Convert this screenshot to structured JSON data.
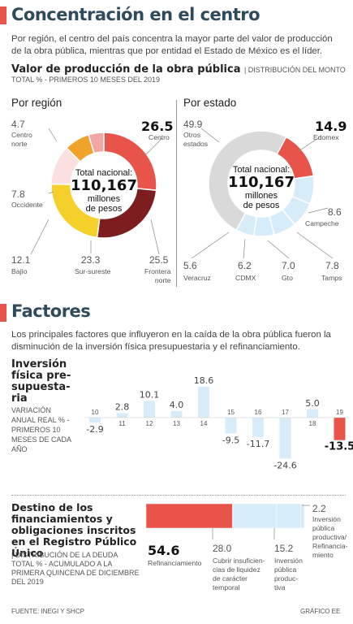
{
  "colors": {
    "accent": "#e8534a",
    "navy": "#2f4a5b",
    "light_blue": "#d6ecf8",
    "dark_red": "#7d1d1f",
    "yellow": "#f5d02a",
    "orange": "#f0a22a",
    "pink": "#f2a7a5",
    "pale_pink": "#fbe0df",
    "gray": "#d9d9d9"
  },
  "section1": {
    "title": "Concentración en el centro",
    "lead": "Por región, el centro del país concentra la mayor parte del valor de producción de la obra pública, mientras que por entidad el Estado de México es el líder.",
    "heading_bold": "Valor de producción de la obra pública",
    "heading_small": "| DISTRIBUCIÓN DEL MONTO",
    "heading_small2": "TOTAL % - PRIMEROS 10 MESES DEL 2019",
    "left_title": "Por región",
    "right_title": "Por estado",
    "center": {
      "line1": "Total nacional:",
      "line2": "110,167",
      "line3": "millones",
      "line4": "de pesos"
    },
    "region_labels": [
      {
        "value": "4.7",
        "label": "Centro\nnorte"
      },
      {
        "value": "26.5",
        "label": "Centro"
      },
      {
        "value": "7.8",
        "label": "Occidente"
      },
      {
        "value": "12.1",
        "label": "Bajío"
      },
      {
        "value": "23.3",
        "label": "Sur-sureste"
      },
      {
        "value": "25.5",
        "label": "Frontera\nnorte"
      }
    ],
    "state_labels": [
      {
        "value": "49.9",
        "label": "Otros\nestados"
      },
      {
        "value": "14.9",
        "label": "Edomex"
      },
      {
        "value": "8.6",
        "label": "Campeche"
      },
      {
        "value": "5.6",
        "label": "Veracruz"
      },
      {
        "value": "6.2",
        "label": "CDMX"
      },
      {
        "value": "7.0",
        "label": "Gto"
      },
      {
        "value": "7.8",
        "label": "Tamps"
      }
    ]
  },
  "section2": {
    "title": "Factores",
    "lead": "Los principales factores que influyeron en la caída de la obra pública fueron la disminución de la inversión física presupuestaria y el refinanciamiento.",
    "inv_title": "Inversión física pre-supuesta-ria",
    "inv_sub": "VARIACIÓN ANUAL REAL % - PRIMEROS 10 MESES DE CADA AÑO",
    "dest_title": "Destino de los financiamientos y obligaciones inscritos en el Registro Público Único",
    "dest_sub": "| DISTRIBUCIÓN DE LA DEUDA TOTAL % - ACUMULADO A LA PRIMERA QUINCENA DE DICIEMBRE DEL 2019",
    "dest_labels": [
      {
        "value": "54.6",
        "label": "Refinanciamiento"
      },
      {
        "value": "28.0",
        "label": "Cubrir insuficien-\ncias de liquidez\nde carácter\ntemporal"
      },
      {
        "value": "15.2",
        "label": "Inversión\npública\nproduc-\ntiva"
      },
      {
        "value": "2.2",
        "label": "Inversión\npública\nproductiva/\nRefinancia-\nmiento"
      }
    ]
  },
  "footer": {
    "source": "FUENTE: INEGI Y SHCP",
    "credit": "GRÁFICO EE"
  },
  "chart_data": [
    {
      "type": "pie",
      "title": "Por región",
      "slices": [
        {
          "label": "Centro",
          "value": 26.5,
          "color": "#e8534a"
        },
        {
          "label": "Frontera norte",
          "value": 25.5,
          "color": "#7d1d1f"
        },
        {
          "label": "Sur-sureste",
          "value": 23.3,
          "color": "#f5d02a"
        },
        {
          "label": "Bajío",
          "value": 12.1,
          "color": "#fbe0df"
        },
        {
          "label": "Occidente",
          "value": 7.8,
          "color": "#f0a22a"
        },
        {
          "label": "Centro norte",
          "value": 4.7,
          "color": "#f2a7a5"
        }
      ]
    },
    {
      "type": "pie",
      "title": "Por estado",
      "slices": [
        {
          "label": "Edomex",
          "value": 14.9,
          "color": "#e8534a"
        },
        {
          "label": "Campeche",
          "value": 8.6,
          "color": "#d6ecf8"
        },
        {
          "label": "Tamps",
          "value": 7.8,
          "color": "#d6ecf8"
        },
        {
          "label": "Gto",
          "value": 7.0,
          "color": "#d6ecf8"
        },
        {
          "label": "CDMX",
          "value": 6.2,
          "color": "#d6ecf8"
        },
        {
          "label": "Veracruz",
          "value": 5.6,
          "color": "#d6ecf8"
        },
        {
          "label": "Otros estados",
          "value": 49.9,
          "color": "#d9d9d9"
        }
      ]
    },
    {
      "type": "bar",
      "title": "Inversión física presupuestaria",
      "categories": [
        "10",
        "11",
        "12",
        "13",
        "14",
        "15",
        "16",
        "17",
        "18",
        "19"
      ],
      "values": [
        -2.9,
        2.8,
        10.1,
        4.0,
        18.6,
        -9.5,
        -11.7,
        -24.6,
        5.0,
        -13.5
      ],
      "value_labels": [
        "-2.9",
        "2.8",
        "10.1",
        "4.0",
        "18.6",
        "-9.5",
        "-11.7",
        "-24.6",
        "5.0",
        "-13.5"
      ],
      "highlight": "19"
    },
    {
      "type": "bar",
      "title": "Destino de los financiamientos y obligaciones inscritos en el Registro Público Único",
      "categories": [
        "Refinanciamiento",
        "Cubrir insuficiencias de liquidez de carácter temporal",
        "Inversión pública productiva",
        "Inversión pública productiva/Refinanciamiento"
      ],
      "values": [
        54.6,
        28.0,
        15.2,
        2.2
      ],
      "colors": [
        "#e8534a",
        "#d6ecf8",
        "#d6ecf8",
        "#d6ecf8"
      ]
    }
  ]
}
